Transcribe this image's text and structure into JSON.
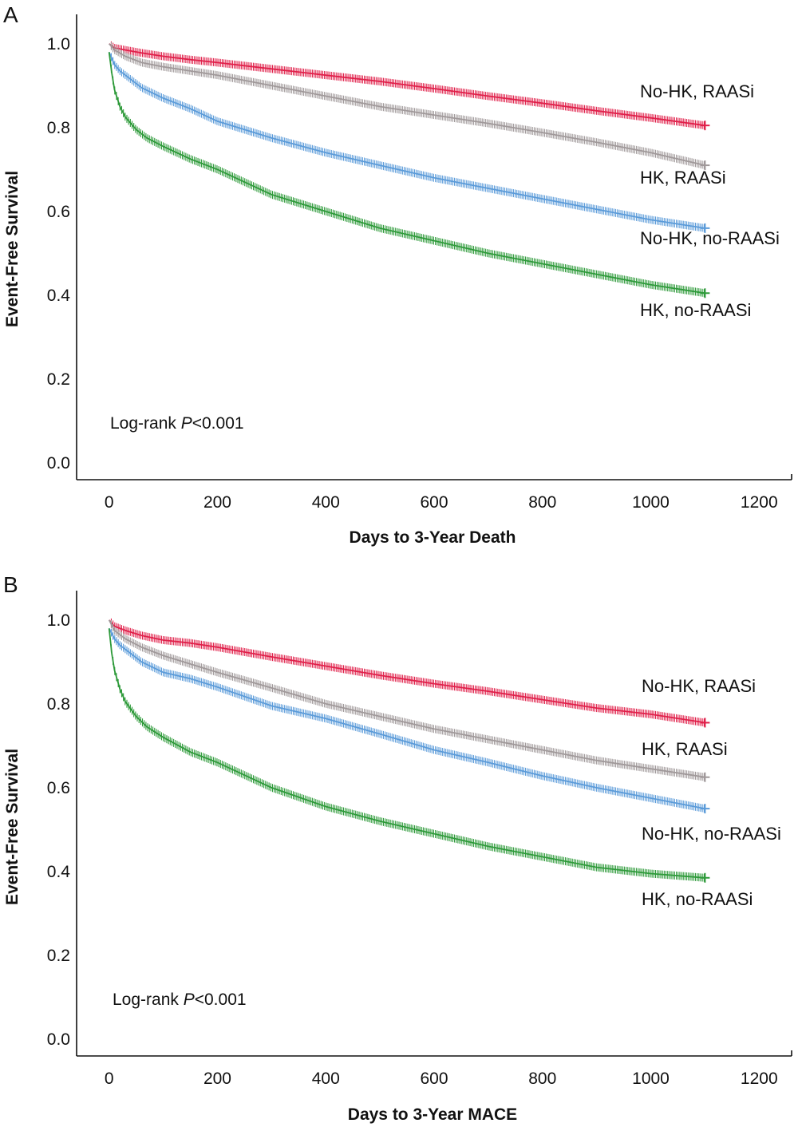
{
  "chart_data": [
    {
      "panel": "A",
      "type": "line",
      "xlabel": "Days to 3-Year Death",
      "ylabel": "Event-Free Survival",
      "xlim": [
        -60,
        1260
      ],
      "ylim": [
        -0.04,
        1.07
      ],
      "xticks": [
        "0",
        "200",
        "400",
        "600",
        "800",
        "1000",
        "1200"
      ],
      "yticks": [
        "0.0",
        "0.2",
        "0.4",
        "0.6",
        "0.8",
        "1.0"
      ],
      "annotation": {
        "prefix": "Log-rank ",
        "italic": "P",
        "suffix": "<0.001"
      },
      "series": [
        {
          "name": "No-HK, RAASi",
          "color": "#e0204a",
          "x": [
            0,
            10,
            30,
            60,
            100,
            150,
            200,
            300,
            400,
            500,
            600,
            700,
            800,
            900,
            1000,
            1100
          ],
          "y": [
            1.0,
            0.99,
            0.985,
            0.978,
            0.97,
            0.962,
            0.955,
            0.94,
            0.925,
            0.91,
            0.893,
            0.875,
            0.858,
            0.84,
            0.823,
            0.805
          ]
        },
        {
          "name": "HK, RAASi",
          "color": "#a0999a",
          "x": [
            0,
            10,
            30,
            60,
            100,
            150,
            200,
            300,
            400,
            500,
            600,
            700,
            800,
            900,
            1000,
            1100
          ],
          "y": [
            1.0,
            0.985,
            0.97,
            0.955,
            0.945,
            0.935,
            0.925,
            0.9,
            0.875,
            0.85,
            0.83,
            0.81,
            0.788,
            0.765,
            0.74,
            0.71
          ]
        },
        {
          "name": "No-HK, no-RAASi",
          "color": "#5b9bd9",
          "x": [
            0,
            10,
            20,
            40,
            60,
            100,
            150,
            200,
            300,
            400,
            500,
            600,
            700,
            800,
            900,
            1000,
            1100
          ],
          "y": [
            0.98,
            0.95,
            0.935,
            0.915,
            0.895,
            0.87,
            0.845,
            0.815,
            0.775,
            0.74,
            0.71,
            0.68,
            0.655,
            0.63,
            0.605,
            0.58,
            0.56
          ]
        },
        {
          "name": "HK, no-RAASi",
          "color": "#2e9a3a",
          "x": [
            0,
            5,
            10,
            20,
            30,
            50,
            70,
            100,
            150,
            200,
            300,
            400,
            500,
            600,
            700,
            800,
            900,
            1000,
            1100
          ],
          "y": [
            0.98,
            0.93,
            0.89,
            0.85,
            0.825,
            0.795,
            0.775,
            0.755,
            0.725,
            0.7,
            0.64,
            0.6,
            0.56,
            0.53,
            0.5,
            0.475,
            0.45,
            0.425,
            0.405
          ]
        }
      ]
    },
    {
      "panel": "B",
      "type": "line",
      "xlabel": "Days to 3-Year MACE",
      "ylabel": "Event-Free Survival",
      "xlim": [
        -60,
        1260
      ],
      "ylim": [
        -0.04,
        1.07
      ],
      "xticks": [
        "0",
        "200",
        "400",
        "600",
        "800",
        "1000",
        "1200"
      ],
      "yticks": [
        "0.0",
        "0.2",
        "0.4",
        "0.6",
        "0.8",
        "1.0"
      ],
      "annotation": {
        "prefix": "Log-rank ",
        "italic": "P",
        "suffix": "<0.001"
      },
      "series": [
        {
          "name": "No-HK, RAASi",
          "color": "#e0204a",
          "x": [
            0,
            10,
            30,
            60,
            100,
            150,
            200,
            300,
            400,
            500,
            600,
            700,
            800,
            900,
            1000,
            1100
          ],
          "y": [
            1.0,
            0.985,
            0.975,
            0.963,
            0.952,
            0.945,
            0.935,
            0.912,
            0.89,
            0.868,
            0.848,
            0.83,
            0.81,
            0.79,
            0.775,
            0.755
          ]
        },
        {
          "name": "HK, RAASi",
          "color": "#a0999a",
          "x": [
            0,
            10,
            30,
            60,
            100,
            150,
            200,
            300,
            400,
            500,
            600,
            700,
            800,
            900,
            1000,
            1100
          ],
          "y": [
            1.0,
            0.975,
            0.955,
            0.935,
            0.915,
            0.895,
            0.875,
            0.838,
            0.8,
            0.77,
            0.74,
            0.715,
            0.69,
            0.665,
            0.645,
            0.625
          ]
        },
        {
          "name": "No-HK, no-RAASi",
          "color": "#5b9bd9",
          "x": [
            0,
            10,
            20,
            40,
            60,
            100,
            150,
            200,
            300,
            400,
            500,
            600,
            700,
            800,
            900,
            1000,
            1100
          ],
          "y": [
            0.98,
            0.955,
            0.94,
            0.92,
            0.9,
            0.875,
            0.86,
            0.84,
            0.795,
            0.765,
            0.728,
            0.69,
            0.66,
            0.628,
            0.6,
            0.575,
            0.55
          ]
        },
        {
          "name": "HK, no-RAASi",
          "color": "#2e9a3a",
          "x": [
            0,
            5,
            10,
            20,
            30,
            50,
            70,
            100,
            150,
            200,
            300,
            400,
            500,
            600,
            700,
            800,
            900,
            1000,
            1100
          ],
          "y": [
            0.98,
            0.92,
            0.88,
            0.835,
            0.805,
            0.77,
            0.745,
            0.72,
            0.685,
            0.66,
            0.6,
            0.555,
            0.52,
            0.49,
            0.46,
            0.435,
            0.41,
            0.395,
            0.385
          ]
        }
      ]
    }
  ]
}
